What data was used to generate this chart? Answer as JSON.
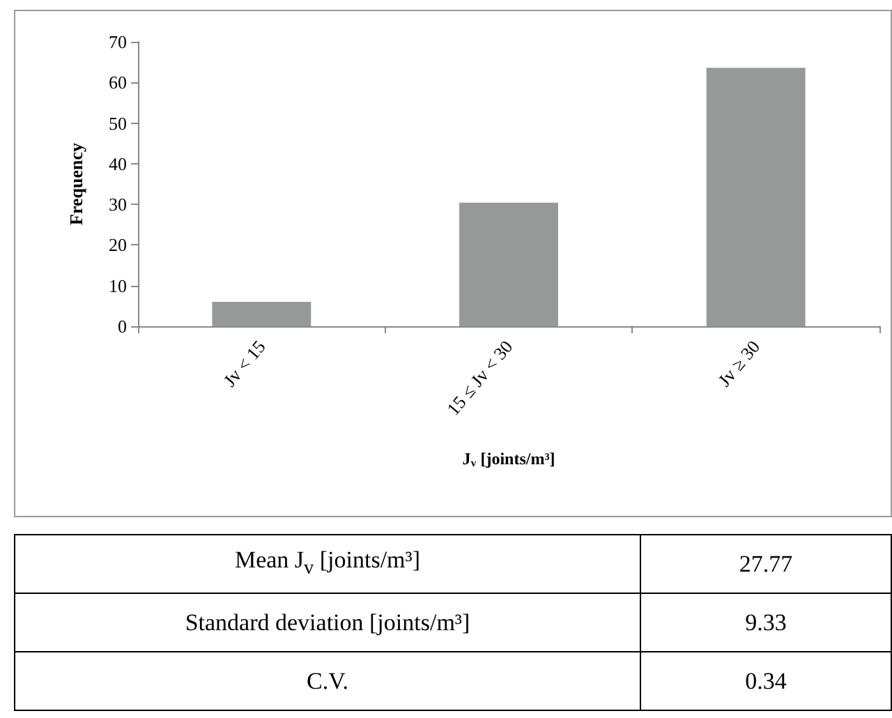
{
  "chart_data": {
    "type": "bar",
    "categories": [
      "Jv < 15",
      "15 ≤ Jv < 30",
      "Jv ≥ 30"
    ],
    "values": [
      6.0,
      30.4,
      63.6
    ],
    "color": "#979999",
    "ylabel": "Frequency",
    "xlabel": "J$_{v}$ [joints/m³]",
    "ylim": [
      0,
      70
    ],
    "yticks": [
      0,
      10,
      20,
      30,
      40,
      50,
      60,
      70
    ],
    "grid": false,
    "annotations": [
      "Mean J$_{v}$ [joints/m³]",
      "27.77",
      "Standard deviation [joints/m³]",
      "9.33",
      "C.V.",
      "0.34"
    ]
  }
}
